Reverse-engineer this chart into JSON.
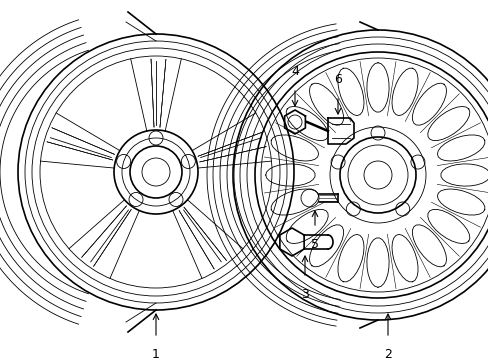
{
  "bg_color": "#ffffff",
  "line_color": "#000000",
  "lw_main": 1.2,
  "lw_thin": 0.6,
  "lw_xtra": 0.4,
  "figsize": [
    4.89,
    3.6
  ],
  "dpi": 100,
  "w1cx": 0.235,
  "w1cy": 0.52,
  "w1r": 0.175,
  "w2cx": 0.72,
  "w2cy": 0.5,
  "w2r": 0.175
}
